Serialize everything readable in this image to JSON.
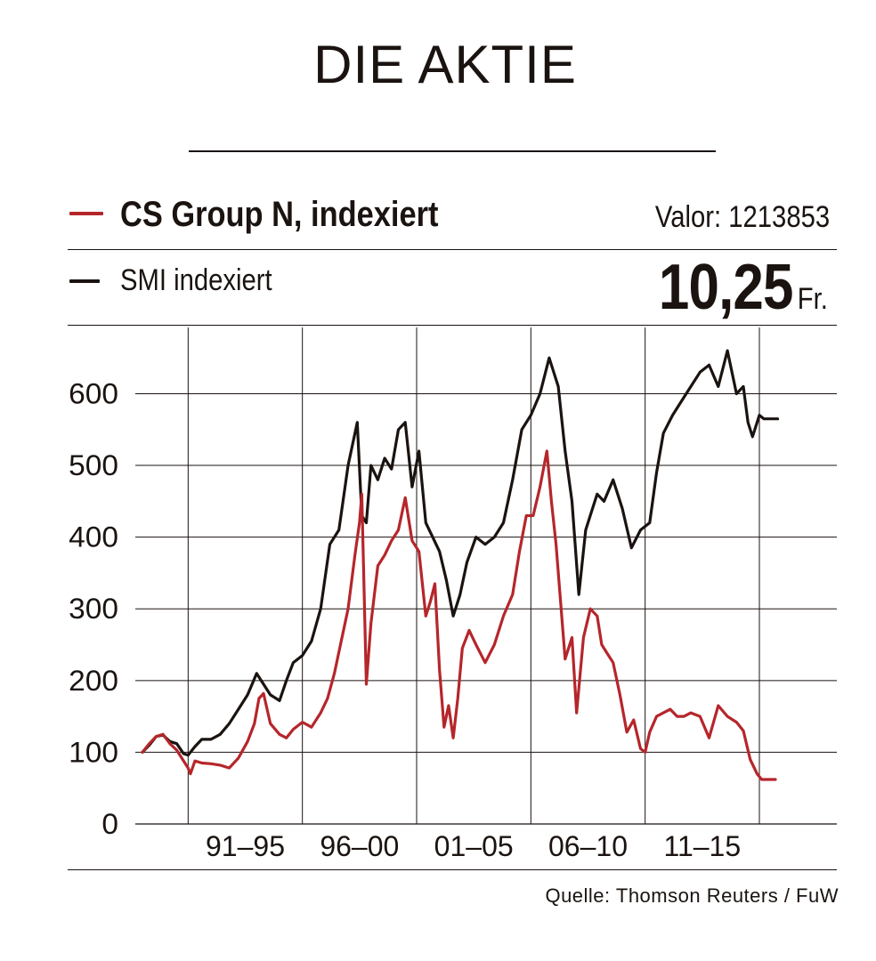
{
  "header": {
    "title": "DIE AKTIE"
  },
  "legend": {
    "series_cs_label": "CS Group N, indexiert",
    "series_smi_label": "SMI indexiert",
    "valor": "Valor: 1213853",
    "price_value": "10,25",
    "price_unit": "Fr."
  },
  "footer": {
    "source": "Quelle: Thomson Reuters / FuW"
  },
  "colors": {
    "cs_series": "#b5262b",
    "smi_series": "#1a1310",
    "grid": "#1a1310"
  },
  "chart_data": {
    "type": "line",
    "title": "DIE AKTIE",
    "xlabel": "",
    "ylabel": "",
    "ylim": [
      0,
      680
    ],
    "yticks": [
      0,
      100,
      200,
      300,
      400,
      500,
      600
    ],
    "xlim": [
      1989.0,
      2019.0
    ],
    "xtick_labels": [
      "91–95",
      "96–00",
      "01–05",
      "06–10",
      "11–15"
    ],
    "x_period_boundaries": [
      1991.0,
      1996.0,
      2001.0,
      2006.0,
      2011.0,
      2016.0
    ],
    "legend": "top-left",
    "grid": true,
    "series": [
      {
        "name": "CS Group N, indexiert",
        "color": "#b5262b",
        "x": [
          1989.0,
          1989.3,
          1989.6,
          1989.9,
          1990.2,
          1990.5,
          1990.8,
          1991.0,
          1991.1,
          1991.3,
          1991.6,
          1992.0,
          1992.4,
          1992.8,
          1993.2,
          1993.6,
          1993.9,
          1994.1,
          1994.3,
          1994.6,
          1995.0,
          1995.3,
          1995.6,
          1996.0,
          1996.4,
          1996.8,
          1997.1,
          1997.4,
          1997.7,
          1998.0,
          1998.3,
          1998.5,
          1998.6,
          1998.8,
          1999.0,
          1999.3,
          1999.6,
          1999.9,
          2000.2,
          2000.5,
          2000.8,
          2001.1,
          2001.4,
          2001.6,
          2001.8,
          2002.0,
          2002.2,
          2002.4,
          2002.6,
          2002.8,
          2003.0,
          2003.3,
          2003.6,
          2004.0,
          2004.4,
          2004.8,
          2005.2,
          2005.5,
          2005.8,
          2006.1,
          2006.4,
          2006.7,
          2006.9,
          2007.1,
          2007.3,
          2007.5,
          2007.8,
          2008.0,
          2008.3,
          2008.6,
          2008.9,
          2009.1,
          2009.3,
          2009.6,
          2009.9,
          2010.2,
          2010.5,
          2010.8,
          2011.0,
          2011.2,
          2011.5,
          2011.8,
          2012.1,
          2012.4,
          2012.7,
          2013.0,
          2013.4,
          2013.8,
          2014.2,
          2014.6,
          2015.0,
          2015.3,
          2015.6,
          2015.9,
          2016.1,
          2016.3,
          2016.5,
          2016.7
        ],
        "values": [
          100,
          112,
          122,
          125,
          112,
          103,
          88,
          78,
          70,
          88,
          85,
          84,
          82,
          78,
          92,
          115,
          140,
          175,
          182,
          140,
          125,
          120,
          132,
          142,
          135,
          155,
          175,
          210,
          255,
          300,
          375,
          420,
          460,
          195,
          280,
          360,
          375,
          395,
          410,
          455,
          395,
          380,
          290,
          310,
          335,
          215,
          135,
          165,
          120,
          175,
          245,
          270,
          250,
          225,
          250,
          290,
          320,
          380,
          430,
          430,
          470,
          520,
          450,
          390,
          310,
          230,
          260,
          155,
          260,
          300,
          290,
          250,
          240,
          225,
          180,
          128,
          145,
          105,
          100,
          128,
          150,
          155,
          160,
          150,
          150,
          155,
          150,
          120,
          165,
          150,
          142,
          130,
          90,
          70,
          62,
          62,
          62,
          62
        ]
      },
      {
        "name": "SMI indexiert",
        "color": "#1a1310",
        "x": [
          1989.0,
          1989.3,
          1989.6,
          1989.9,
          1990.2,
          1990.5,
          1990.8,
          1991.0,
          1991.3,
          1991.6,
          1992.0,
          1992.4,
          1992.8,
          1993.2,
          1993.6,
          1994.0,
          1994.3,
          1994.6,
          1995.0,
          1995.3,
          1995.6,
          1996.0,
          1996.4,
          1996.8,
          1997.2,
          1997.6,
          1998.0,
          1998.4,
          1998.6,
          1998.8,
          1999.0,
          1999.3,
          1999.6,
          1999.9,
          2000.2,
          2000.5,
          2000.8,
          2001.1,
          2001.4,
          2001.7,
          2002.0,
          2002.3,
          2002.6,
          2002.9,
          2003.2,
          2003.6,
          2004.0,
          2004.4,
          2004.8,
          2005.2,
          2005.6,
          2006.0,
          2006.4,
          2006.8,
          2007.0,
          2007.2,
          2007.5,
          2007.8,
          2008.1,
          2008.4,
          2008.7,
          2008.9,
          2009.2,
          2009.6,
          2010.0,
          2010.4,
          2010.8,
          2011.2,
          2011.5,
          2011.8,
          2012.2,
          2012.6,
          2013.0,
          2013.4,
          2013.8,
          2014.2,
          2014.6,
          2015.0,
          2015.3,
          2015.5,
          2015.7,
          2016.0,
          2016.2,
          2016.4,
          2016.6,
          2016.8
        ],
        "values": [
          100,
          110,
          122,
          124,
          115,
          112,
          98,
          96,
          108,
          118,
          118,
          125,
          140,
          160,
          180,
          210,
          195,
          180,
          172,
          200,
          225,
          235,
          255,
          300,
          390,
          410,
          500,
          560,
          430,
          420,
          500,
          480,
          510,
          495,
          550,
          560,
          470,
          520,
          420,
          400,
          380,
          340,
          290,
          320,
          365,
          400,
          390,
          400,
          420,
          480,
          550,
          570,
          600,
          650,
          630,
          610,
          520,
          450,
          320,
          410,
          440,
          460,
          450,
          480,
          440,
          385,
          410,
          420,
          490,
          545,
          570,
          590,
          610,
          630,
          640,
          610,
          660,
          600,
          610,
          560,
          540,
          570,
          565,
          565,
          565,
          565
        ]
      }
    ]
  }
}
